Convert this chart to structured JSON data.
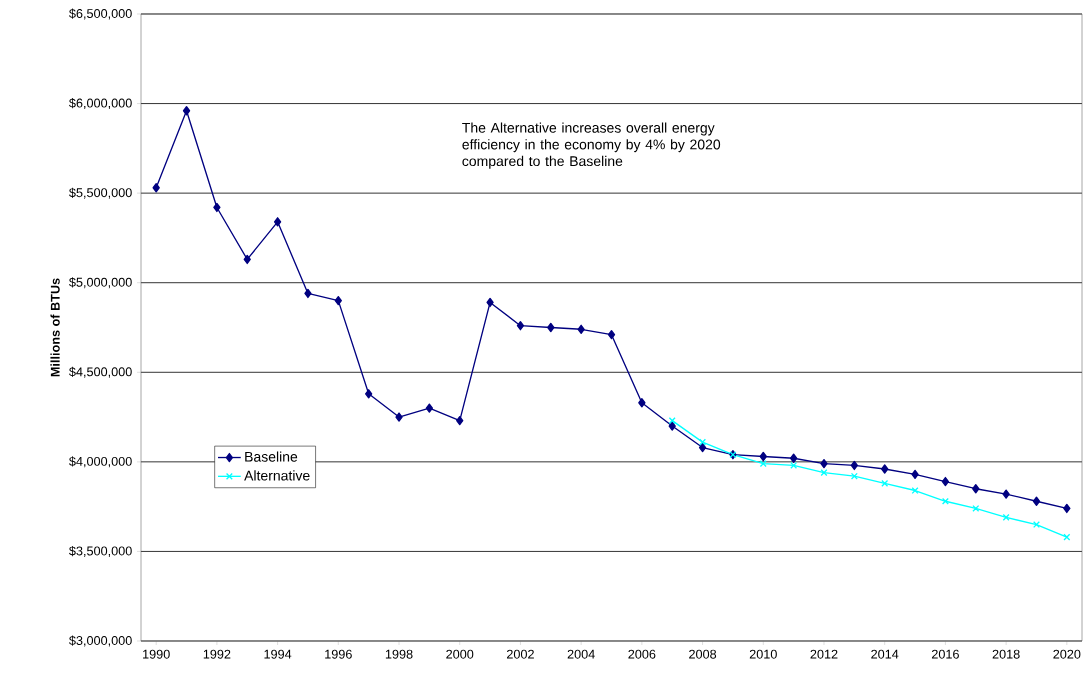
{
  "chart_data": {
    "type": "line",
    "ylabel": "Millions of BTUs",
    "x": [
      1990,
      1991,
      1992,
      1993,
      1994,
      1995,
      1996,
      1997,
      1998,
      1999,
      2000,
      2001,
      2002,
      2003,
      2004,
      2005,
      2006,
      2007,
      2008,
      2009,
      2010,
      2011,
      2012,
      2013,
      2014,
      2015,
      2016,
      2017,
      2018,
      2019,
      2020
    ],
    "series": [
      {
        "name": "Baseline",
        "color": "#000080",
        "marker": "diamond",
        "values": [
          5530000,
          5960000,
          5420000,
          5130000,
          5340000,
          4940000,
          4900000,
          4380000,
          4250000,
          4300000,
          4230000,
          4890000,
          4760000,
          4750000,
          4740000,
          4710000,
          4330000,
          4200000,
          4080000,
          4040000,
          4030000,
          4020000,
          3990000,
          3980000,
          3960000,
          3930000,
          3890000,
          3850000,
          3820000,
          3780000,
          3740000
        ]
      },
      {
        "name": "Alternative",
        "color": "#00ffff",
        "marker": "cross",
        "x": [
          2007,
          2008,
          2009,
          2010,
          2011,
          2012,
          2013,
          2014,
          2015,
          2016,
          2017,
          2018,
          2019,
          2020
        ],
        "values": [
          4230000,
          4110000,
          4040000,
          3990000,
          3980000,
          3940000,
          3920000,
          3880000,
          3840000,
          3780000,
          3740000,
          3690000,
          3650000,
          3580000
        ]
      }
    ],
    "xlim": [
      1989.5,
      2020.5
    ],
    "xticks": [
      1990,
      1992,
      1994,
      1996,
      1998,
      2000,
      2002,
      2004,
      2006,
      2008,
      2010,
      2012,
      2014,
      2016,
      2018,
      2020
    ],
    "ylim": [
      3000000,
      6500000
    ],
    "yticks": [
      {
        "value": 3000000,
        "label": "$3,000,000"
      },
      {
        "value": 3500000,
        "label": "$3,500,000"
      },
      {
        "value": 4000000,
        "label": "$4,000,000"
      },
      {
        "value": 4500000,
        "label": "$4,500,000"
      },
      {
        "value": 5000000,
        "label": "$5,000,000"
      },
      {
        "value": 5500000,
        "label": "$5,500,000"
      },
      {
        "value": 6000000,
        "label": "$6,000,000"
      },
      {
        "value": 6500000,
        "label": "$6,500,000"
      }
    ],
    "grid": "y",
    "legend": "left",
    "annotations": [
      "The Alternative increases overall energy efficiency in the economy  by 4% by 2020 compared to the Baseline"
    ]
  }
}
